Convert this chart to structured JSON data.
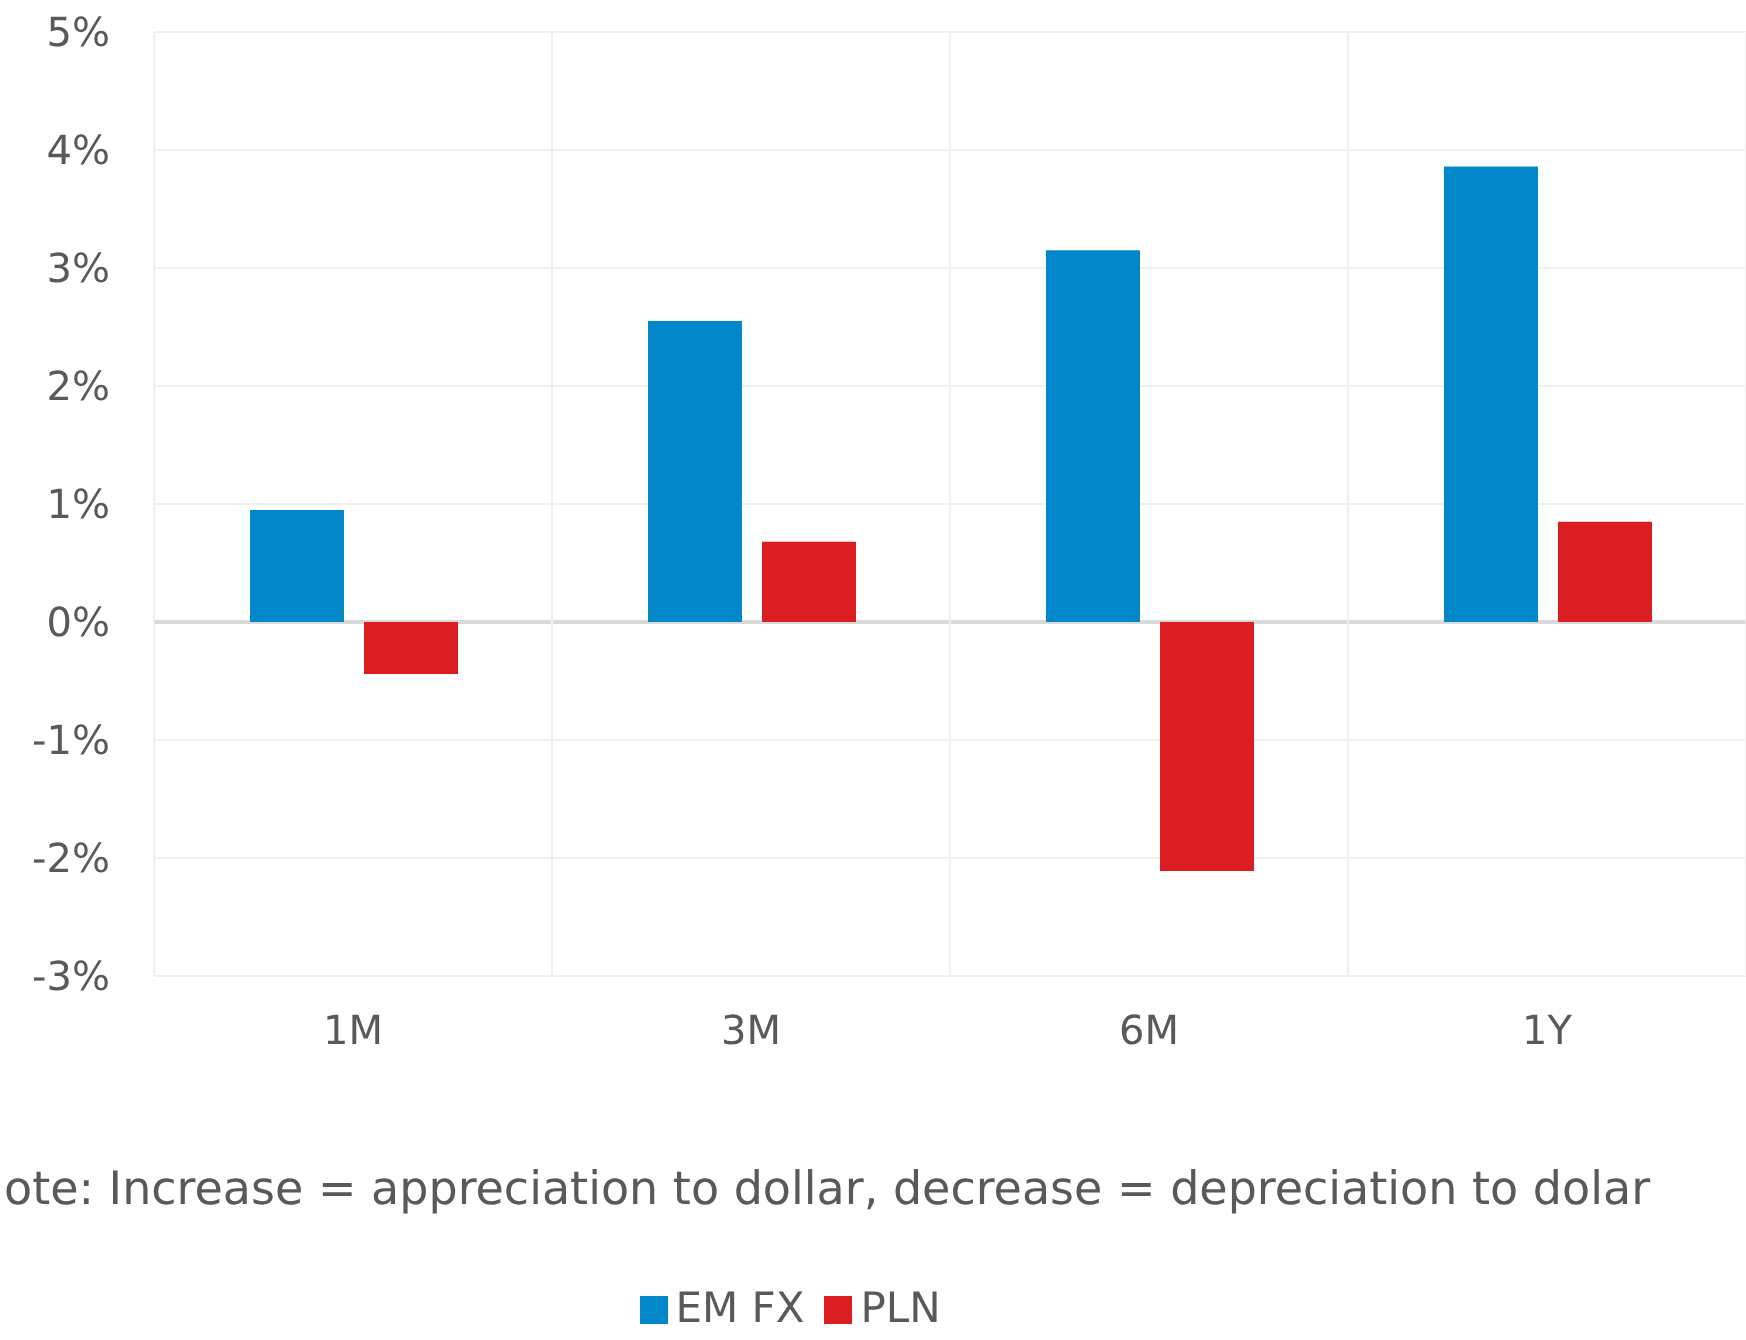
{
  "chart_data": {
    "type": "bar",
    "categories": [
      "1M",
      "3M",
      "6M",
      "1Y"
    ],
    "series": [
      {
        "name": "EM FX",
        "color": "#0288ca",
        "values": [
          0.95,
          2.55,
          3.15,
          3.86
        ]
      },
      {
        "name": "PLN",
        "color": "#da1e22",
        "values": [
          -0.44,
          0.68,
          -2.11,
          0.85
        ]
      }
    ],
    "ylim": [
      -3,
      5
    ],
    "yticks": [
      {
        "value": -3,
        "label": "-3%"
      },
      {
        "value": -2,
        "label": "-2%"
      },
      {
        "value": -1,
        "label": "-1%"
      },
      {
        "value": 0,
        "label": "0%"
      },
      {
        "value": 1,
        "label": "1%"
      },
      {
        "value": 2,
        "label": "2%"
      },
      {
        "value": 3,
        "label": "3%"
      },
      {
        "value": 4,
        "label": "4%"
      },
      {
        "value": 5,
        "label": "5%"
      }
    ],
    "grid": true,
    "legend": "bottom",
    "annotations": [
      "ote: Increase = appreciation to dollar, decrease = depreciation to dolar"
    ]
  }
}
